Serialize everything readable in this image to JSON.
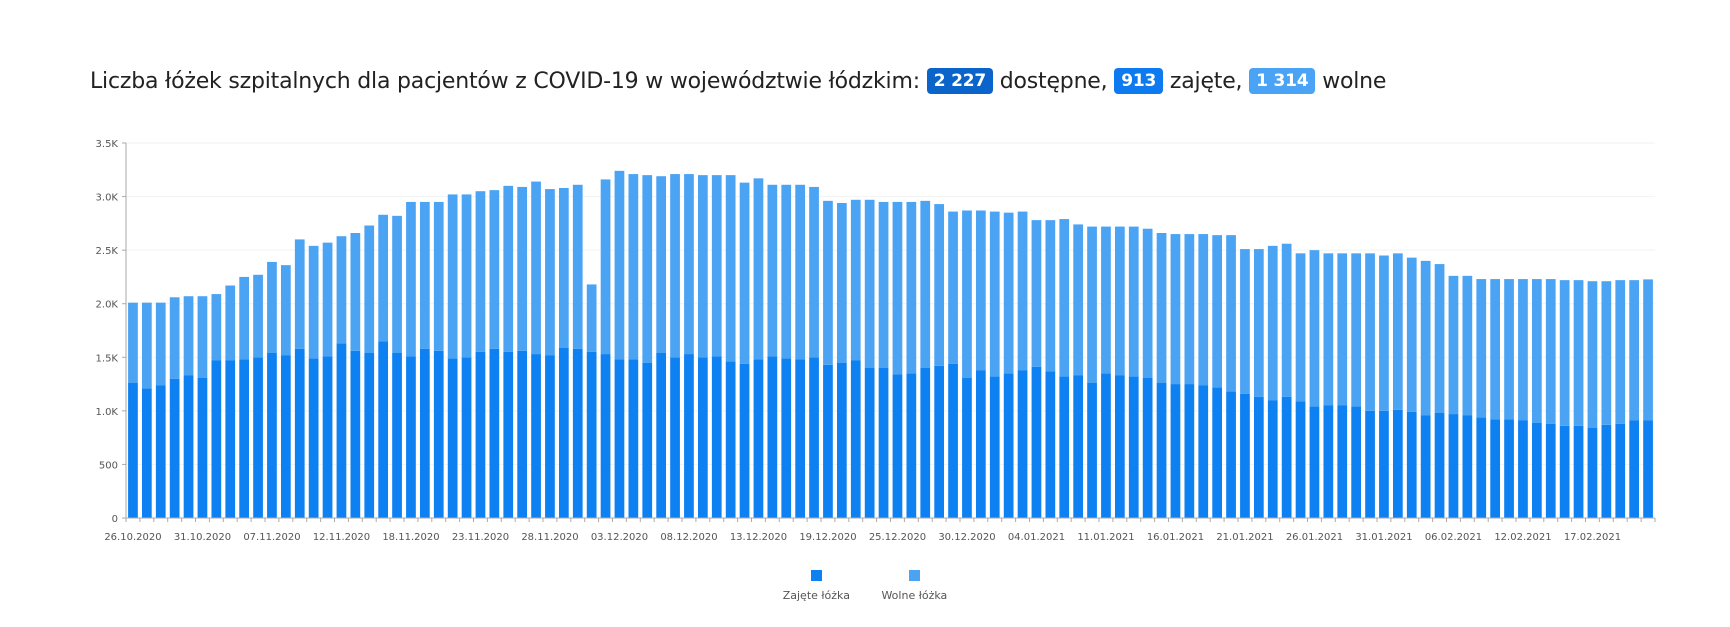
{
  "header": {
    "title_prefix": "Liczba łóżek szpitalnych dla pacjentów z COVID-19 w województwie łódzkim:",
    "available_value": "2 227",
    "available_label": "dostępne,",
    "occupied_value": "913",
    "occupied_label": "zajęte,",
    "free_value": "1 314",
    "free_label": "wolne"
  },
  "legend": {
    "occupied": "Zajęte łóżka",
    "free": "Wolne łóżka"
  },
  "colors": {
    "occupied": "#0d80f2",
    "free": "#4ba3f4",
    "axis": "#aaaaaa",
    "grid": "#f2f2f2",
    "tick_text": "#555555"
  },
  "chart_data": {
    "type": "bar",
    "stacked": true,
    "ylim": [
      0,
      3500
    ],
    "y_ticks": [
      0,
      500,
      1000,
      1500,
      2000,
      2500,
      3000,
      3500
    ],
    "y_tick_labels": [
      "0",
      "500",
      "1.0K",
      "1.5K",
      "2.0K",
      "2.5K",
      "3.0K",
      "3.5K"
    ],
    "x_tick_labels": [
      "26.10.2020",
      "31.10.2020",
      "07.11.2020",
      "12.11.2020",
      "18.11.2020",
      "23.11.2020",
      "28.11.2020",
      "03.12.2020",
      "08.12.2020",
      "13.12.2020",
      "19.12.2020",
      "25.12.2020",
      "30.12.2020",
      "04.01.2021",
      "11.01.2021",
      "16.01.2021",
      "21.01.2021",
      "26.01.2021",
      "31.01.2021",
      "06.02.2021",
      "12.02.2021",
      "17.02.2021"
    ],
    "x_tick_index": [
      0,
      5,
      10,
      15,
      20,
      25,
      30,
      35,
      40,
      45,
      50,
      55,
      60,
      65,
      70,
      75,
      80,
      85,
      90,
      95,
      100,
      105
    ],
    "series": [
      {
        "name": "Zajęte łóżka",
        "values": [
          1260,
          1210,
          1240,
          1300,
          1330,
          1310,
          1470,
          1470,
          1480,
          1500,
          1540,
          1520,
          1580,
          1490,
          1510,
          1630,
          1560,
          1540,
          1650,
          1540,
          1510,
          1580,
          1560,
          1490,
          1500,
          1550,
          1580,
          1550,
          1560,
          1530,
          1520,
          1590,
          1580,
          1550,
          1530,
          1480,
          1480,
          1450,
          1540,
          1500,
          1530,
          1500,
          1510,
          1460,
          1440,
          1480,
          1510,
          1490,
          1480,
          1500,
          1430,
          1450,
          1470,
          1400,
          1400,
          1340,
          1350,
          1400,
          1420,
          1440,
          1310,
          1380,
          1320,
          1350,
          1380,
          1410,
          1370,
          1320,
          1330,
          1260,
          1350,
          1330,
          1320,
          1310,
          1260,
          1250,
          1250,
          1240,
          1220,
          1180,
          1160,
          1130,
          1100,
          1130,
          1090,
          1040,
          1050,
          1050,
          1040,
          1000,
          1000,
          1010,
          990,
          960,
          980,
          970,
          960,
          940,
          920,
          920,
          910,
          890,
          880,
          860,
          860,
          840,
          870,
          880,
          910,
          913
        ]
      },
      {
        "name": "Wolne łóżka",
        "values": [
          750,
          800,
          770,
          760,
          740,
          760,
          620,
          700,
          770,
          770,
          850,
          840,
          1020,
          1050,
          1060,
          1000,
          1100,
          1190,
          1180,
          1280,
          1440,
          1370,
          1390,
          1530,
          1520,
          1500,
          1480,
          1550,
          1530,
          1610,
          1550,
          1490,
          1530,
          630,
          1630,
          1760,
          1730,
          1750,
          1650,
          1710,
          1680,
          1700,
          1690,
          1740,
          1690,
          1690,
          1600,
          1620,
          1630,
          1590,
          1530,
          1490,
          1500,
          1570,
          1550,
          1610,
          1600,
          1560,
          1510,
          1420,
          1560,
          1490,
          1540,
          1500,
          1480,
          1370,
          1410,
          1470,
          1410,
          1460,
          1370,
          1390,
          1400,
          1390,
          1400,
          1400,
          1400,
          1410,
          1420,
          1460,
          1350,
          1380,
          1440,
          1430,
          1380,
          1460,
          1420,
          1420,
          1430,
          1470,
          1450,
          1460,
          1440,
          1440,
          1390,
          1290,
          1300,
          1290,
          1310,
          1310,
          1320,
          1340,
          1350,
          1360,
          1360,
          1370,
          1340,
          1340,
          1310,
          1314
        ]
      }
    ]
  }
}
